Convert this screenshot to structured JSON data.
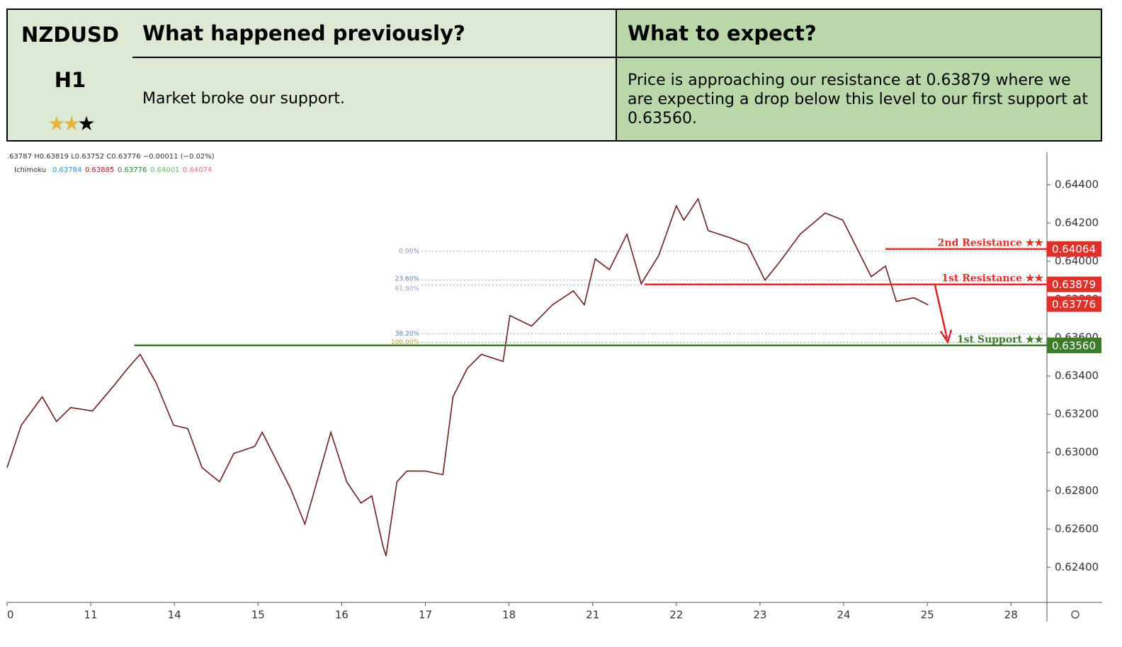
{
  "header": {
    "symbol": "NZDUSD",
    "timeframe": "H1",
    "rating": 2,
    "rating_max": 3,
    "previous_title": "What happened previously?",
    "expect_title": "What to expect?",
    "previous_text": "Market broke our support.",
    "expect_text": "Price is approaching our resistance at 0.63879 where we are expecting a drop below this level to our first support at 0.63560."
  },
  "chart_data": {
    "type": "line",
    "ohlc_text": ".63787 H0.63819 L0.63752 C0.63776 −0.00011 (−0.02%)",
    "indicator": {
      "name": "Ichimoku",
      "values": [
        {
          "text": "0.63784",
          "color": "#2e8bd8"
        },
        {
          "text": "0.63885",
          "color": "#9b1c1c"
        },
        {
          "text": "0.63776",
          "color": "#2e7d32"
        },
        {
          "text": "0.64001",
          "color": "#66bb6a"
        },
        {
          "text": "0.64074",
          "color": "#e57373"
        }
      ]
    },
    "xlim": [
      0,
      12.43
    ],
    "xticks": [
      {
        "value": 0,
        "label": "0"
      },
      {
        "value": 1,
        "label": "11"
      },
      {
        "value": 2,
        "label": "14"
      },
      {
        "value": 3,
        "label": "15"
      },
      {
        "value": 4,
        "label": "16"
      },
      {
        "value": 5,
        "label": "17"
      },
      {
        "value": 6,
        "label": "18"
      },
      {
        "value": 7,
        "label": "21"
      },
      {
        "value": 8,
        "label": "22"
      },
      {
        "value": 9,
        "label": "23"
      },
      {
        "value": 10,
        "label": "24"
      },
      {
        "value": 11,
        "label": "25"
      },
      {
        "value": 12,
        "label": "28"
      }
    ],
    "ylim": [
      0.6222,
      0.6457
    ],
    "yticks": [
      {
        "value": 0.624,
        "label": "0.62400"
      },
      {
        "value": 0.626,
        "label": "0.62600"
      },
      {
        "value": 0.628,
        "label": "0.62800"
      },
      {
        "value": 0.63,
        "label": "0.63000"
      },
      {
        "value": 0.632,
        "label": "0.63200"
      },
      {
        "value": 0.634,
        "label": "0.63400"
      },
      {
        "value": 0.636,
        "label": "0.63600"
      },
      {
        "value": 0.638,
        "label": "0.63800"
      },
      {
        "value": 0.64,
        "label": "0.64000"
      },
      {
        "value": 0.642,
        "label": "0.64200"
      },
      {
        "value": 0.644,
        "label": "0.64400"
      }
    ],
    "x": [
      0,
      0.17,
      0.42,
      0.59,
      0.76,
      1.02,
      1.27,
      1.44,
      1.59,
      1.78,
      1.99,
      2.16,
      2.33,
      2.54,
      2.71,
      2.96,
      3.05,
      3.22,
      3.39,
      3.56,
      3.68,
      3.87,
      4.06,
      4.23,
      4.36,
      4.49,
      4.53,
      4.66,
      4.78,
      5.0,
      5.21,
      5.33,
      5.5,
      5.67,
      5.93,
      6.01,
      6.27,
      6.52,
      6.77,
      6.9,
      7.03,
      7.2,
      7.41,
      7.58,
      7.79,
      8.0,
      8.09,
      8.26,
      8.38,
      8.64,
      8.85,
      9.06,
      9.23,
      9.48,
      9.78,
      9.99,
      10.16,
      10.33,
      10.5,
      10.63,
      10.84,
      11.01
    ],
    "series": [
      {
        "name": "NZDUSD",
        "color": "#6b1f1f",
        "values": [
          0.62921,
          0.63143,
          0.63291,
          0.63162,
          0.63235,
          0.63217,
          0.63346,
          0.63439,
          0.63513,
          0.63365,
          0.63143,
          0.63125,
          0.62921,
          0.62847,
          0.62995,
          0.63032,
          0.63106,
          0.62958,
          0.6281,
          0.62626,
          0.6281,
          0.63106,
          0.62847,
          0.62736,
          0.62773,
          0.62515,
          0.62459,
          0.62847,
          0.62903,
          0.62903,
          0.62884,
          0.63291,
          0.63439,
          0.63513,
          0.63476,
          0.63716,
          0.63661,
          0.63772,
          0.63845,
          0.63772,
          0.64012,
          0.63956,
          0.64141,
          0.63882,
          0.6403,
          0.64289,
          0.64215,
          0.64326,
          0.6416,
          0.64123,
          0.64086,
          0.63901,
          0.63993,
          0.64141,
          0.64252,
          0.64215,
          0.64067,
          0.63919,
          0.63975,
          0.6379,
          0.63809,
          0.63772
        ]
      }
    ],
    "fibs": [
      {
        "label": "0.00%",
        "value": 0.64052,
        "color": "#7f8fc0"
      },
      {
        "label": "23.60%",
        "value": 0.63901,
        "color": "#5c7fa8"
      },
      {
        "label": "61.80%",
        "value": 0.63875,
        "color": "#a89cc8"
      },
      {
        "label": "38.20%",
        "value": 0.6362,
        "color": "#5c7fa8"
      },
      {
        "label": "100.00%",
        "value": 0.63576,
        "color": "#a8a040"
      }
    ],
    "levels": [
      {
        "name": "2nd Resistance ★★",
        "value": 0.64064,
        "label": "0.64064",
        "color": "#e0302a",
        "from": 10.5
      },
      {
        "name": "1st Resistance ★★",
        "value": 0.63879,
        "label": "0.63879",
        "color": "#e0302a",
        "from": 7.62
      },
      {
        "name": "1st Support ★★",
        "value": 0.6356,
        "label": "0.63560",
        "color": "#3d7a2a",
        "from": 1.52
      }
    ],
    "current": {
      "value": 0.63776,
      "label": "0.63776",
      "color": "#e0302a"
    }
  }
}
